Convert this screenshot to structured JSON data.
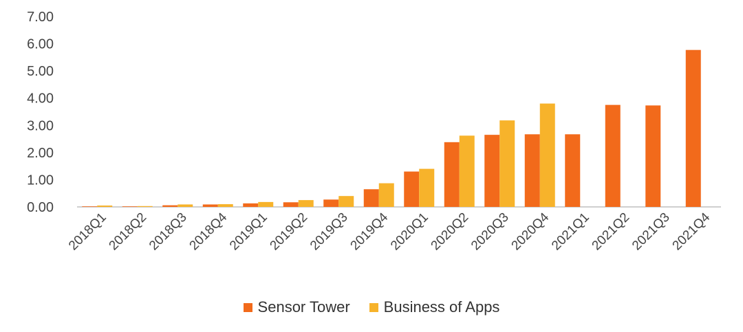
{
  "chart_data": {
    "type": "bar",
    "title": "",
    "xlabel": "",
    "ylabel": "",
    "ylim": [
      0,
      7
    ],
    "yticks": [
      "0.00",
      "1.00",
      "2.00",
      "3.00",
      "4.00",
      "5.00",
      "6.00",
      "7.00"
    ],
    "grid": false,
    "legend_position": "bottom",
    "categories": [
      "2018Q1",
      "2018Q2",
      "2018Q3",
      "2018Q4",
      "2019Q1",
      "2019Q2",
      "2019Q3",
      "2019Q4",
      "2020Q1",
      "2020Q2",
      "2020Q3",
      "2020Q4",
      "2021Q1",
      "2021Q2",
      "2021Q3",
      "2021Q4"
    ],
    "series": [
      {
        "name": "Sensor Tower",
        "color": "#F26A1B",
        "values": [
          0.02,
          0.02,
          0.06,
          0.09,
          0.13,
          0.17,
          0.27,
          0.65,
          1.3,
          2.38,
          2.65,
          2.67,
          2.67,
          3.75,
          3.73,
          5.77
        ]
      },
      {
        "name": "Business of Apps",
        "color": "#F7B32B",
        "values": [
          0.05,
          0.03,
          0.09,
          0.1,
          0.18,
          0.25,
          0.4,
          0.87,
          1.4,
          2.62,
          3.18,
          3.8,
          null,
          null,
          null,
          null
        ]
      }
    ]
  }
}
